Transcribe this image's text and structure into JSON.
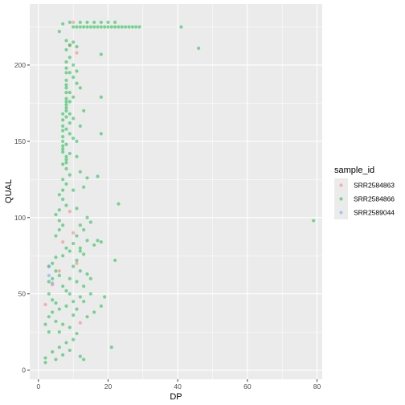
{
  "chart_data": {
    "type": "scatter",
    "xlabel": "DP",
    "ylabel": "QUAL",
    "xlim": [
      -2.5,
      81.5
    ],
    "ylim": [
      -6,
      240
    ],
    "xticks": [
      0,
      20,
      40,
      60,
      80
    ],
    "yticks": [
      0,
      50,
      100,
      150,
      200
    ],
    "grid": true,
    "legend": {
      "title": "sample_id",
      "placement": "right",
      "entries": [
        "SRR2584863",
        "SRR2584866",
        "SRR2589044"
      ]
    },
    "colors": {
      "SRR2584863": "#F8766D",
      "SRR2584866": "#00BA38",
      "SRR2589044": "#619CFF",
      "panel": "#EBEBEB",
      "grid": "#FFFFFF"
    },
    "series": [
      {
        "name": "SRR2584863",
        "points": [
          [
            10,
            228
          ],
          [
            9,
            213
          ],
          [
            11,
            208
          ],
          [
            9,
            104
          ],
          [
            7,
            84
          ],
          [
            2,
            43
          ],
          [
            4,
            56
          ],
          [
            10,
            90
          ],
          [
            12,
            31
          ],
          [
            6,
            65
          ],
          [
            11,
            70
          ]
        ]
      },
      {
        "name": "SRR2584866",
        "points": [
          [
            10,
            225
          ],
          [
            11,
            225
          ],
          [
            12,
            225
          ],
          [
            13,
            225
          ],
          [
            14,
            225
          ],
          [
            15,
            225
          ],
          [
            16,
            225
          ],
          [
            17,
            225
          ],
          [
            18,
            225
          ],
          [
            19,
            225
          ],
          [
            20,
            225
          ],
          [
            21,
            225
          ],
          [
            22,
            225
          ],
          [
            23,
            225
          ],
          [
            24,
            225
          ],
          [
            25,
            225
          ],
          [
            26,
            225
          ],
          [
            27,
            225
          ],
          [
            28,
            225
          ],
          [
            29,
            225
          ],
          [
            12,
            228
          ],
          [
            14,
            228
          ],
          [
            16,
            228
          ],
          [
            18,
            228
          ],
          [
            20,
            228
          ],
          [
            22,
            228
          ],
          [
            9,
            228
          ],
          [
            7,
            227
          ],
          [
            6,
            222
          ],
          [
            8,
            216
          ],
          [
            9,
            213
          ],
          [
            41,
            225
          ],
          [
            46,
            211
          ],
          [
            8,
            210
          ],
          [
            9,
            205
          ],
          [
            10,
            200
          ],
          [
            8,
            198
          ],
          [
            9,
            195
          ],
          [
            10,
            192
          ],
          [
            11,
            188
          ],
          [
            8,
            185
          ],
          [
            9,
            182
          ],
          [
            10,
            179
          ],
          [
            9,
            176
          ],
          [
            8,
            172
          ],
          [
            9,
            168
          ],
          [
            10,
            165
          ],
          [
            9,
            162
          ],
          [
            8,
            158
          ],
          [
            9,
            155
          ],
          [
            10,
            152
          ],
          [
            8,
            148
          ],
          [
            7,
            145
          ],
          [
            9,
            142
          ],
          [
            8,
            138
          ],
          [
            7,
            135
          ],
          [
            8,
            132
          ],
          [
            9,
            128
          ],
          [
            7,
            125
          ],
          [
            8,
            122
          ],
          [
            7,
            118
          ],
          [
            6,
            115
          ],
          [
            7,
            112
          ],
          [
            8,
            108
          ],
          [
            6,
            105
          ],
          [
            5,
            102
          ],
          [
            6,
            98
          ],
          [
            7,
            95
          ],
          [
            8,
            176
          ],
          [
            8,
            174
          ],
          [
            8,
            170
          ],
          [
            7,
            168
          ],
          [
            8,
            166
          ],
          [
            7,
            164
          ],
          [
            7,
            160
          ],
          [
            7,
            157
          ],
          [
            7,
            153
          ],
          [
            7,
            150
          ],
          [
            7,
            147
          ],
          [
            7,
            143
          ],
          [
            8,
            140
          ],
          [
            8,
            136
          ],
          [
            8,
            202
          ],
          [
            8,
            195
          ],
          [
            8,
            190
          ],
          [
            8,
            187
          ],
          [
            8,
            182
          ],
          [
            8,
            178
          ],
          [
            10,
            215
          ],
          [
            11,
            212
          ],
          [
            11,
            196
          ],
          [
            12,
            185
          ],
          [
            13,
            170
          ],
          [
            12,
            160
          ],
          [
            11,
            150
          ],
          [
            11,
            140
          ],
          [
            12,
            130
          ],
          [
            13,
            120
          ],
          [
            10,
            118
          ],
          [
            11,
            106
          ],
          [
            18,
            207
          ],
          [
            18,
            179
          ],
          [
            18,
            155
          ],
          [
            17,
            127
          ],
          [
            14,
            126
          ],
          [
            23,
            109
          ],
          [
            79,
            98
          ],
          [
            15,
            97
          ],
          [
            12,
            95
          ],
          [
            11,
            88
          ],
          [
            14,
            85
          ],
          [
            16,
            82
          ],
          [
            10,
            83
          ],
          [
            8,
            80
          ],
          [
            12,
            78
          ],
          [
            13,
            76
          ],
          [
            17,
            85
          ],
          [
            18,
            84
          ],
          [
            9,
            78
          ],
          [
            7,
            75
          ],
          [
            5,
            74
          ],
          [
            4,
            70
          ],
          [
            3,
            68
          ],
          [
            5,
            65
          ],
          [
            6,
            62
          ],
          [
            9,
            60
          ],
          [
            11,
            58
          ],
          [
            13,
            55
          ],
          [
            15,
            50
          ],
          [
            12,
            48
          ],
          [
            10,
            45
          ],
          [
            8,
            42
          ],
          [
            6,
            40
          ],
          [
            4,
            38
          ],
          [
            3,
            35
          ],
          [
            5,
            32
          ],
          [
            7,
            30
          ],
          [
            9,
            28
          ],
          [
            11,
            24
          ],
          [
            10,
            20
          ],
          [
            8,
            18
          ],
          [
            6,
            15
          ],
          [
            4,
            12
          ],
          [
            2,
            8
          ],
          [
            2,
            5
          ],
          [
            5,
            7
          ],
          [
            7,
            10
          ],
          [
            9,
            13
          ],
          [
            12,
            9
          ],
          [
            13,
            7
          ],
          [
            21,
            15
          ],
          [
            22,
            72
          ],
          [
            19,
            48
          ],
          [
            18,
            42
          ],
          [
            16,
            38
          ],
          [
            14,
            35
          ],
          [
            12,
            65
          ],
          [
            14,
            63
          ],
          [
            15,
            60
          ],
          [
            13,
            45
          ],
          [
            11,
            40
          ],
          [
            10,
            36
          ],
          [
            3,
            50
          ],
          [
            4,
            46
          ],
          [
            5,
            44
          ],
          [
            2,
            30
          ],
          [
            3,
            25
          ],
          [
            6,
            25
          ],
          [
            7,
            55
          ],
          [
            8,
            52
          ],
          [
            9,
            50
          ],
          [
            10,
            68
          ],
          [
            11,
            72
          ],
          [
            12,
            80
          ],
          [
            13,
            92
          ],
          [
            14,
            100
          ],
          [
            5,
            88
          ],
          [
            6,
            92
          ],
          [
            4,
            60
          ],
          [
            3,
            58
          ]
        ]
      },
      {
        "name": "SRR2589044",
        "points": [
          [
            3,
            68
          ],
          [
            3,
            62
          ],
          [
            4,
            57
          ]
        ]
      }
    ]
  }
}
